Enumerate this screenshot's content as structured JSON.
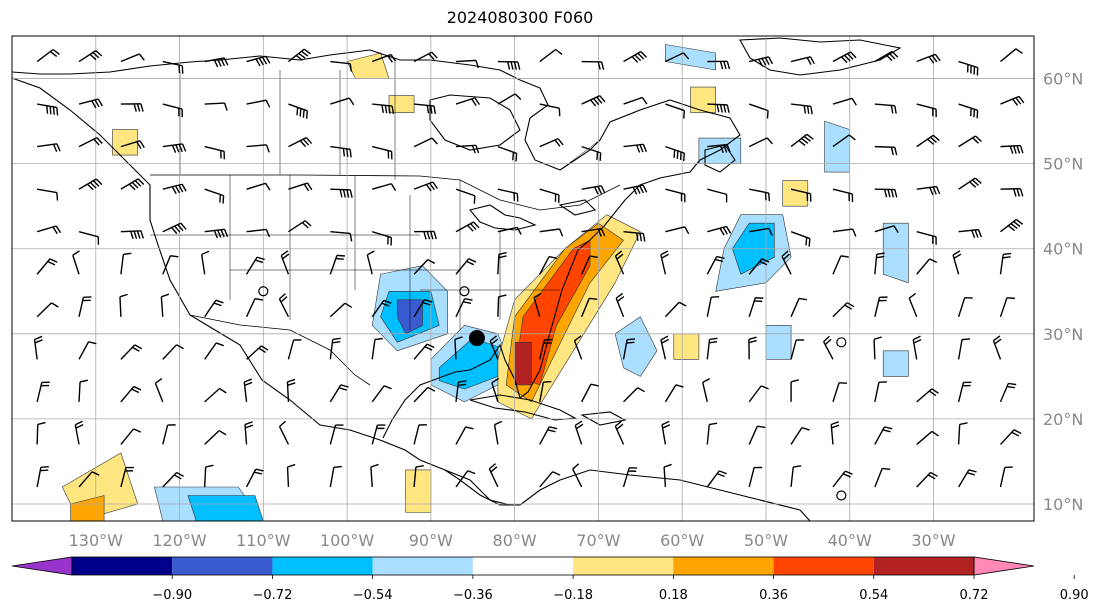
{
  "title": "2024080300 F060",
  "map": {
    "lon_range": [
      -140,
      -18
    ],
    "lat_range": [
      8,
      65
    ],
    "grid_lons": [
      -130,
      -120,
      -110,
      -100,
      -90,
      -80,
      -70,
      -60,
      -50,
      -40,
      -30
    ],
    "grid_lats": [
      10,
      20,
      30,
      40,
      50,
      60
    ],
    "lon_labels": [
      "130°W",
      "120°W",
      "110°W",
      "100°W",
      "90°W",
      "80°W",
      "70°W",
      "60°W",
      "50°W",
      "40°W",
      "30°W"
    ],
    "lat_labels": [
      "10°N",
      "20°N",
      "30°N",
      "40°N",
      "50°N",
      "60°N"
    ],
    "label_color": "#888888",
    "center_marker": {
      "lon": -84.5,
      "lat": 29.5
    }
  },
  "colorbar": {
    "ticks": [
      "−0.90",
      "−0.72",
      "−0.54",
      "−0.36",
      "−0.18",
      "0.18",
      "0.36",
      "0.54",
      "0.72",
      "0.90"
    ],
    "colors": [
      "#9933cc",
      "#00008b",
      "#3a5bd0",
      "#00bfff",
      "#aadfff",
      "#ffffff",
      "#ffe680",
      "#ffa500",
      "#ff4500",
      "#b22222",
      "#ff88b4"
    ]
  },
  "anomalies": [
    {
      "level": "neg",
      "shade": "#aadfff",
      "pts": [
        [
          -96,
          37
        ],
        [
          -91,
          38
        ],
        [
          -88,
          35
        ],
        [
          -88,
          30
        ],
        [
          -94,
          28
        ],
        [
          -97,
          31
        ]
      ]
    },
    {
      "level": "neg",
      "shade": "#00bfff",
      "pts": [
        [
          -95,
          35
        ],
        [
          -90,
          35
        ],
        [
          -89,
          31
        ],
        [
          -94,
          29
        ],
        [
          -96,
          32
        ]
      ]
    },
    {
      "level": "neg",
      "shade": "#3a5bd0",
      "pts": [
        [
          -94,
          34
        ],
        [
          -91,
          34
        ],
        [
          -91,
          31
        ],
        [
          -93,
          30
        ],
        [
          -94,
          32
        ]
      ]
    },
    {
      "level": "neg",
      "shade": "#aadfff",
      "pts": [
        [
          -90,
          27
        ],
        [
          -86,
          31
        ],
        [
          -82,
          30
        ],
        [
          -80,
          25
        ],
        [
          -86,
          22
        ],
        [
          -90,
          24
        ]
      ]
    },
    {
      "level": "neg",
      "shade": "#00bfff",
      "pts": [
        [
          -89,
          26
        ],
        [
          -85,
          29.5
        ],
        [
          -82,
          28.5
        ],
        [
          -82,
          25
        ],
        [
          -86,
          23.5
        ],
        [
          -89,
          24.5
        ]
      ]
    },
    {
      "level": "neg",
      "shade": "#aadfff",
      "pts": [
        [
          -53,
          44
        ],
        [
          -48,
          44
        ],
        [
          -47,
          39
        ],
        [
          -50,
          36
        ],
        [
          -56,
          35
        ],
        [
          -55,
          40
        ]
      ]
    },
    {
      "level": "neg",
      "shade": "#00bfff",
      "pts": [
        [
          -52,
          43
        ],
        [
          -49,
          43
        ],
        [
          -49,
          39
        ],
        [
          -53,
          37
        ],
        [
          -54,
          40
        ]
      ]
    },
    {
      "level": "neg",
      "shade": "#aadfff",
      "pts": [
        [
          -68,
          30
        ],
        [
          -65,
          32
        ],
        [
          -63,
          28
        ],
        [
          -65,
          25
        ],
        [
          -67,
          26
        ]
      ]
    },
    {
      "level": "neg",
      "shade": "#aadfff",
      "pts": [
        [
          -123,
          12
        ],
        [
          -113,
          12
        ],
        [
          -110,
          8
        ],
        [
          -122,
          8
        ]
      ]
    },
    {
      "level": "neg",
      "shade": "#00bfff",
      "pts": [
        [
          -119,
          11
        ],
        [
          -111,
          11
        ],
        [
          -110,
          8
        ],
        [
          -118,
          8
        ]
      ]
    },
    {
      "level": "neg",
      "shade": "#aadfff",
      "pts": [
        [
          -43,
          55
        ],
        [
          -40,
          54
        ],
        [
          -40,
          49
        ],
        [
          -43,
          49
        ]
      ]
    },
    {
      "level": "neg",
      "shade": "#aadfff",
      "pts": [
        [
          -36,
          43
        ],
        [
          -33,
          43
        ],
        [
          -33,
          36
        ],
        [
          -36,
          37
        ]
      ]
    },
    {
      "level": "neg",
      "shade": "#aadfff",
      "pts": [
        [
          -62,
          64
        ],
        [
          -56,
          63
        ],
        [
          -56,
          61
        ],
        [
          -62,
          62
        ]
      ]
    },
    {
      "level": "neg",
      "shade": "#aadfff",
      "pts": [
        [
          -58,
          53
        ],
        [
          -53,
          53
        ],
        [
          -53,
          50
        ],
        [
          -58,
          50
        ]
      ]
    },
    {
      "level": "neg",
      "shade": "#aadfff",
      "pts": [
        [
          -50,
          31
        ],
        [
          -47,
          31
        ],
        [
          -47,
          27
        ],
        [
          -50,
          27
        ]
      ]
    },
    {
      "level": "neg",
      "shade": "#aadfff",
      "pts": [
        [
          -36,
          28
        ],
        [
          -33,
          28
        ],
        [
          -33,
          25
        ],
        [
          -36,
          25
        ]
      ]
    },
    {
      "level": "pos",
      "shade": "#ffe680",
      "pts": [
        [
          -74,
          40
        ],
        [
          -69,
          44
        ],
        [
          -65,
          42
        ],
        [
          -68,
          36
        ],
        [
          -73,
          28
        ],
        [
          -78,
          20
        ],
        [
          -82,
          22
        ],
        [
          -82,
          27
        ],
        [
          -80,
          34
        ]
      ]
    },
    {
      "level": "pos",
      "shade": "#ffa500",
      "pts": [
        [
          -74,
          40
        ],
        [
          -70,
          43
        ],
        [
          -67,
          41
        ],
        [
          -71,
          36
        ],
        [
          -75,
          28
        ],
        [
          -78,
          22
        ],
        [
          -81,
          24
        ],
        [
          -80,
          32
        ]
      ]
    },
    {
      "level": "pos",
      "shade": "#ff4500",
      "pts": [
        [
          -73,
          40
        ],
        [
          -71,
          41
        ],
        [
          -71,
          38
        ],
        [
          -75,
          31
        ],
        [
          -77,
          24
        ],
        [
          -80,
          25
        ],
        [
          -79,
          32
        ]
      ]
    },
    {
      "level": "pos",
      "shade": "#b22222",
      "pts": [
        [
          -80,
          29
        ],
        [
          -78,
          29
        ],
        [
          -78,
          24
        ],
        [
          -80,
          24
        ]
      ]
    },
    {
      "level": "pos",
      "shade": "#ffe680",
      "pts": [
        [
          -134,
          12
        ],
        [
          -127,
          16
        ],
        [
          -125,
          10
        ],
        [
          -132,
          8
        ]
      ]
    },
    {
      "level": "pos",
      "shade": "#ffa500",
      "pts": [
        [
          -133,
          10
        ],
        [
          -129,
          11
        ],
        [
          -129,
          8
        ],
        [
          -133,
          8
        ]
      ]
    },
    {
      "level": "pos",
      "shade": "#ffe680",
      "pts": [
        [
          -48,
          48
        ],
        [
          -45,
          48
        ],
        [
          -45,
          45
        ],
        [
          -48,
          45
        ]
      ]
    },
    {
      "level": "pos",
      "shade": "#ffe680",
      "pts": [
        [
          -100,
          62
        ],
        [
          -96,
          63
        ],
        [
          -95,
          60
        ],
        [
          -99,
          60
        ]
      ]
    },
    {
      "level": "pos",
      "shade": "#ffe680",
      "pts": [
        [
          -95,
          58
        ],
        [
          -92,
          58
        ],
        [
          -92,
          56
        ],
        [
          -95,
          56
        ]
      ]
    },
    {
      "level": "pos",
      "shade": "#ffe680",
      "pts": [
        [
          -59,
          59
        ],
        [
          -56,
          59
        ],
        [
          -56,
          56
        ],
        [
          -59,
          56
        ]
      ]
    },
    {
      "level": "pos",
      "shade": "#ffe680",
      "pts": [
        [
          -61,
          30
        ],
        [
          -58,
          30
        ],
        [
          -58,
          27
        ],
        [
          -61,
          27
        ]
      ]
    },
    {
      "level": "pos",
      "shade": "#ffe680",
      "pts": [
        [
          -93,
          14
        ],
        [
          -90,
          14
        ],
        [
          -90,
          9
        ],
        [
          -93,
          9
        ]
      ]
    },
    {
      "level": "pos",
      "shade": "#ffe680",
      "pts": [
        [
          -128,
          54
        ],
        [
          -125,
          54
        ],
        [
          -125,
          51
        ],
        [
          -128,
          51
        ]
      ]
    }
  ]
}
